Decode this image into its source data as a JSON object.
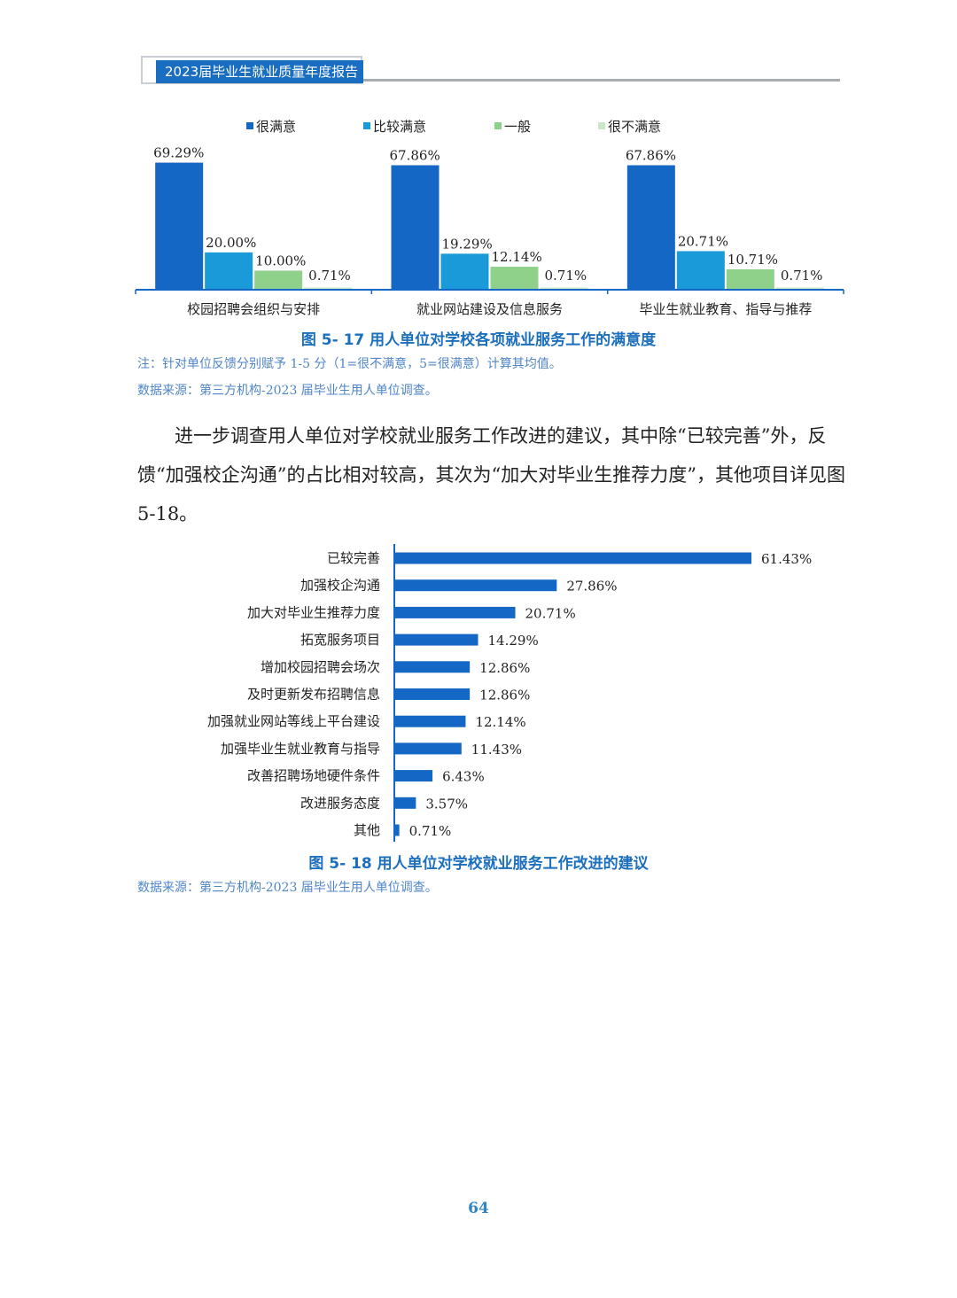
{
  "header": {
    "title": "2023届毕业生就业质量年度报告"
  },
  "figure17": {
    "caption": "图 5- 17    用人单位对学校各项就业服务工作的满意度",
    "note": "注：针对单位反馈分别赋予 1-5 分（1=很不满意，5=很满意）计算其均值。",
    "source": "数据来源：第三方机构-2023 届毕业生用人单位调查。"
  },
  "paragraph": "进一步调查用人单位对学校就业服务工作改进的建议，其中除“已较完善”外，反馈“加强校企沟通”的占比相对较高，其次为“加大对毕业生推荐力度”，其他项目详见图 5-18。",
  "figure18": {
    "caption": "图 5- 18    用人单位对学校就业服务工作改进的建议",
    "source": "数据来源：第三方机构-2023 届毕业生用人单位调查。"
  },
  "page_number": "64",
  "chart_data": [
    {
      "type": "bar",
      "categories": [
        "校园招聘会组织与安排",
        "就业网站建设及信息服务",
        "毕业生就业教育、指导与推荐"
      ],
      "series": [
        {
          "name": "很满意",
          "color": "#1467c4",
          "values": [
            69.29,
            67.86,
            67.86
          ],
          "labels": [
            "69.29%",
            "67.86%",
            "67.86%"
          ]
        },
        {
          "name": "比较满意",
          "color": "#1a9ad9",
          "values": [
            20.0,
            19.29,
            20.71
          ],
          "labels": [
            "20.00%",
            "19.29%",
            "20.71%"
          ]
        },
        {
          "name": "一般",
          "color": "#8fd08a",
          "values": [
            10.0,
            12.14,
            10.71
          ],
          "labels": [
            "10.00%",
            "12.14%",
            "10.71%"
          ]
        },
        {
          "name": "很不满意",
          "color": "#c9e8c6",
          "values": [
            0.71,
            0.71,
            0.71
          ],
          "labels": [
            "0.71%",
            "0.71%",
            "0.71%"
          ]
        }
      ],
      "ylim": [
        0,
        72
      ],
      "legend": "top"
    },
    {
      "type": "bar",
      "orientation": "horizontal",
      "color": "#1467c4",
      "categories": [
        "已较完善",
        "加强校企沟通",
        "加大对毕业生推荐力度",
        "拓宽服务项目",
        "增加校园招聘会场次",
        "及时更新发布招聘信息",
        "加强就业网站等线上平台建设",
        "加强毕业生就业教育与指导",
        "改善招聘场地硬件条件",
        "改进服务态度",
        "其他"
      ],
      "values": [
        61.43,
        27.86,
        20.71,
        14.29,
        12.86,
        12.86,
        12.14,
        11.43,
        6.43,
        3.57,
        0.71
      ],
      "labels": [
        "61.43%",
        "27.86%",
        "20.71%",
        "14.29%",
        "12.86%",
        "12.86%",
        "12.14%",
        "11.43%",
        "6.43%",
        "3.57%",
        "0.71%"
      ],
      "xlim": [
        0,
        61.43
      ]
    }
  ]
}
